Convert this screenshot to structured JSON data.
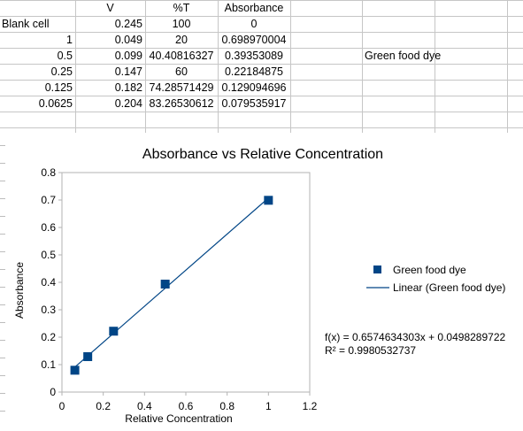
{
  "table": {
    "headers": [
      "",
      "V",
      "%T",
      "Absorbance"
    ],
    "rows": [
      [
        "Blank cell",
        "0.245",
        "100",
        "0"
      ],
      [
        "1",
        "0.049",
        "20",
        "0.698970004"
      ],
      [
        "0.5",
        "0.099",
        "40.40816327",
        "0.39353089"
      ],
      [
        "0.25",
        "0.147",
        "60",
        "0.22184875"
      ],
      [
        "0.125",
        "0.182",
        "74.28571429",
        "0.129094696"
      ],
      [
        "0.0625",
        "0.204",
        "83.26530612",
        "0.079535917"
      ]
    ],
    "side_label": "Green food dye"
  },
  "chart_data": {
    "type": "scatter",
    "title": "Absorbance vs Relative Concentration",
    "xlabel": "Relative Concentration",
    "ylabel": "Absorbance",
    "xlim": [
      0,
      1.2
    ],
    "ylim": [
      0,
      0.8
    ],
    "x_ticks": [
      "0",
      "0.2",
      "0.4",
      "0.6",
      "0.8",
      "1",
      "1.2"
    ],
    "y_ticks": [
      "0",
      "0.1",
      "0.2",
      "0.3",
      "0.4",
      "0.5",
      "0.6",
      "0.7",
      "0.8"
    ],
    "grid": false,
    "legend_position": "right",
    "series": [
      {
        "name": "Green food dye",
        "marker": "square",
        "color": "#004586",
        "x": [
          1,
          0.5,
          0.25,
          0.125,
          0.0625
        ],
        "y": [
          0.698970004,
          0.39353089,
          0.22184875,
          0.129094696,
          0.079535917
        ]
      }
    ],
    "trendline": {
      "name": "Linear (Green food dye)",
      "color": "#004586",
      "slope": 0.6574634303,
      "intercept": 0.0498289722,
      "equation": "f(x) = 0.6574634303x + 0.0498289722",
      "r_squared": "R² = 0.9980532737"
    }
  }
}
